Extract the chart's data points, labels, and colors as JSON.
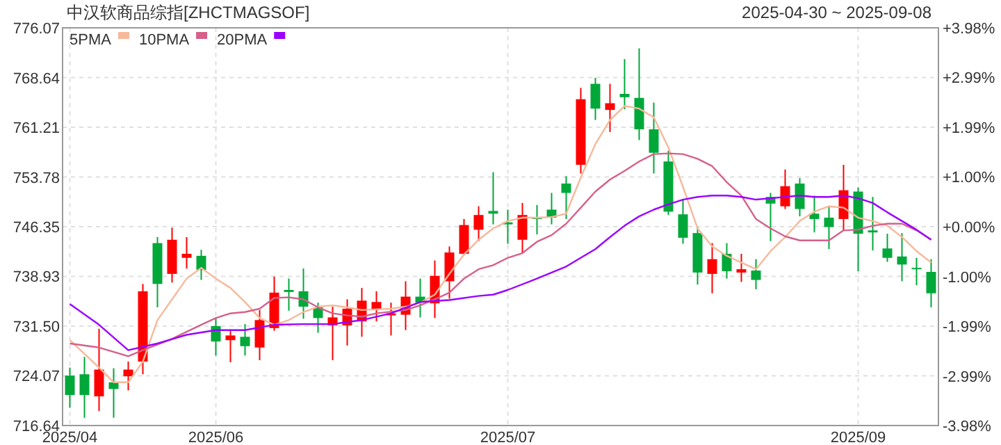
{
  "chart_data": {
    "type": "candlestick",
    "title": "中汉软商品综指[ZHCTMAGSOF]",
    "subtitle": "2025-04-30 ~ 2025-09-08",
    "categories": [
      "2025/04",
      null,
      null,
      null,
      null,
      null,
      null,
      null,
      null,
      null,
      "2025/06",
      null,
      null,
      null,
      null,
      null,
      null,
      null,
      null,
      null,
      null,
      null,
      null,
      null,
      null,
      null,
      null,
      null,
      null,
      null,
      "2025/07",
      null,
      null,
      null,
      null,
      null,
      null,
      null,
      null,
      null,
      null,
      null,
      null,
      null,
      null,
      null,
      null,
      null,
      null,
      null,
      null,
      null,
      null,
      null,
      "2025/09",
      null,
      null,
      null,
      null,
      null
    ],
    "ylim": [
      716.64,
      776.07
    ],
    "yticks": [
      716.64,
      724.07,
      {
        "value": 731.5,
        "label": "731.50"
      },
      738.93,
      746.35,
      753.78,
      761.21,
      768.64,
      776.07
    ],
    "y2lim": [
      -3.98,
      3.98
    ],
    "y2ticks": [
      {
        "value": -3.98,
        "label": "-3.98%"
      },
      {
        "value": -2.99,
        "label": "-2.99%"
      },
      {
        "value": -1.99,
        "label": "-1.99%"
      },
      {
        "value": -1.0,
        "label": "-1.00%"
      },
      {
        "value": 0,
        "label": "+0.00%"
      },
      {
        "value": 1.0,
        "label": "+1.00%"
      },
      {
        "value": 1.99,
        "label": "+1.99%"
      },
      {
        "value": 2.99,
        "label": "+2.99%"
      },
      {
        "value": 3.98,
        "label": "+3.98%"
      }
    ],
    "grid": true,
    "legend": "top left",
    "series": [
      {
        "ohlc": [
          [
            724.1,
            725.3,
            719.3,
            721.2
          ],
          [
            724.3,
            726.9,
            717.8,
            721.2
          ],
          [
            721.0,
            731.1,
            718.8,
            725.0
          ],
          [
            723.1,
            725.2,
            717.8,
            722.1
          ],
          [
            724.0,
            726.2,
            721.9,
            725.0
          ],
          [
            726.2,
            737.8,
            724.3,
            736.7
          ],
          [
            743.9,
            744.8,
            734.3,
            737.8
          ],
          [
            739.3,
            746.2,
            738.0,
            744.4
          ],
          [
            741.7,
            744.8,
            740.1,
            742.3
          ],
          [
            742.0,
            742.9,
            738.4,
            739.9
          ],
          [
            731.5,
            732.7,
            727.1,
            729.2
          ],
          [
            729.4,
            731.0,
            726.1,
            730.1
          ],
          [
            729.9,
            731.8,
            727.1,
            728.5
          ],
          [
            728.3,
            733.9,
            726.4,
            732.4
          ],
          [
            731.2,
            738.9,
            730.8,
            736.5
          ],
          [
            736.9,
            738.6,
            733.8,
            736.6
          ],
          [
            736.7,
            740.1,
            732.6,
            734.4
          ],
          [
            734.3,
            735.0,
            730.5,
            732.7
          ],
          [
            731.6,
            734.4,
            726.4,
            732.8
          ],
          [
            731.6,
            735.5,
            728.6,
            734.1
          ],
          [
            732.2,
            737.2,
            729.9,
            735.3
          ],
          [
            734.0,
            736.7,
            732.2,
            735.1
          ],
          [
            733.1,
            735.0,
            730.1,
            733.4
          ],
          [
            733.2,
            738.2,
            730.9,
            735.9
          ],
          [
            735.9,
            738.6,
            732.8,
            735.0
          ],
          [
            734.9,
            741.3,
            732.7,
            739.0
          ],
          [
            738.2,
            743.4,
            735.6,
            742.5
          ],
          [
            742.3,
            747.5,
            742.1,
            746.6
          ],
          [
            745.9,
            749.4,
            744.2,
            748.1
          ],
          [
            748.7,
            754.5,
            746.7,
            748.3
          ],
          [
            747.0,
            748.9,
            743.8,
            746.7
          ],
          [
            744.4,
            749.9,
            742.4,
            748.1
          ],
          [
            747.8,
            749.6,
            745.2,
            747.5
          ],
          [
            748.9,
            751.4,
            746.7,
            747.7
          ],
          [
            752.8,
            753.9,
            747.5,
            751.4
          ],
          [
            755.6,
            767.1,
            754.3,
            765.4
          ],
          [
            767.7,
            768.6,
            762.3,
            764.0
          ],
          [
            763.8,
            767.7,
            760.5,
            764.8
          ],
          [
            766.2,
            771.4,
            763.9,
            765.7
          ],
          [
            765.6,
            773.0,
            759.3,
            760.9
          ],
          [
            760.9,
            764.9,
            754.3,
            757.4
          ],
          [
            756.1,
            757.7,
            748.1,
            748.6
          ],
          [
            748.2,
            750.5,
            743.8,
            744.7
          ],
          [
            745.4,
            746.3,
            737.7,
            739.5
          ],
          [
            739.3,
            743.9,
            736.4,
            741.5
          ],
          [
            742.3,
            743.9,
            738.6,
            739.7
          ],
          [
            739.5,
            742.3,
            738.1,
            740.0
          ],
          [
            739.8,
            741.5,
            737.0,
            738.4
          ],
          [
            750.8,
            751.4,
            744.2,
            749.8
          ],
          [
            749.4,
            754.9,
            749.0,
            752.4
          ],
          [
            752.8,
            753.6,
            747.9,
            749.0
          ],
          [
            748.3,
            751.0,
            745.5,
            747.5
          ],
          [
            747.7,
            749.5,
            743.0,
            746.3
          ],
          [
            747.5,
            755.6,
            745.8,
            751.8
          ],
          [
            751.6,
            752.2,
            739.7,
            745.3
          ],
          [
            745.8,
            750.8,
            742.8,
            745.5
          ],
          [
            743.1,
            745.3,
            741.1,
            741.7
          ],
          [
            741.9,
            745.4,
            738.2,
            740.7
          ],
          [
            740.2,
            741.7,
            737.6,
            740.0
          ],
          [
            739.6,
            741.5,
            734.3,
            736.4
          ]
        ],
        "colors": [
          "#00a83a",
          "#00a83a",
          "#ff0000",
          "#00a83a",
          "#ff0000",
          "#ff0000",
          "#00a83a",
          "#ff0000",
          "#ff0000",
          "#00a83a",
          "#00a83a",
          "#ff0000",
          "#00a83a",
          "#ff0000",
          "#ff0000",
          "#00a83a",
          "#00a83a",
          "#00a83a",
          "#ff0000",
          "#ff0000",
          "#ff0000",
          "#ff0000",
          "#ff0000",
          "#ff0000",
          "#00a83a",
          "#ff0000",
          "#ff0000",
          "#ff0000",
          "#ff0000",
          "#00a83a",
          "#00a83a",
          "#ff0000",
          "#00a83a",
          "#00a83a",
          "#00a83a",
          "#ff0000",
          "#00a83a",
          "#ff0000",
          "#00a83a",
          "#00a83a",
          "#00a83a",
          "#00a83a",
          "#00a83a",
          "#00a83a",
          "#ff0000",
          "#00a83a",
          "#ff0000",
          "#00a83a",
          "#00a83a",
          "#ff0000",
          "#00a83a",
          "#00a83a",
          "#00a83a",
          "#ff0000",
          "#00a83a",
          "#00a83a",
          "#00a83a",
          "#00a83a",
          "#00a83a",
          "#00a83a"
        ]
      },
      {
        "type": "line",
        "name": "5PMA",
        "color": "#f7b89a",
        "values": [
          729.4,
          null,
          725.3,
          723.1,
          723.1,
          726.2,
          732.4,
          null,
          738.6,
          740.2,
          738.6,
          737.2,
          735.1,
          732.7,
          731.7,
          732.4,
          733.6,
          734.4,
          734.6,
          734.3,
          733.9,
          734.0,
          734.1,
          734.4,
          735.0,
          736.2,
          739.3,
          742.2,
          744.4,
          746.1,
          747.2,
          747.7,
          747.7,
          747.8,
          748.3,
          753.7,
          758.7,
          762.3,
          764.4,
          764.0,
          762.7,
          758.2,
          752.3,
          746.1,
          743.4,
          742.0,
          741.0,
          740.0,
          742.7,
          744.8,
          747.2,
          748.6,
          749.4,
          749.2,
          747.7,
          747.2,
          746.5,
          744.8,
          742.7,
          741.0
        ]
      },
      {
        "type": "line",
        "name": "10PMA",
        "color": "#d6608a",
        "values": [
          728.9,
          null,
          728.3,
          null,
          727.0,
          727.9,
          null,
          729.6,
          null,
          731.7,
          732.7,
          733.4,
          733.6,
          734.1,
          735.7,
          735.8,
          735.5,
          734.3,
          733.4,
          733.1,
          732.9,
          733.4,
          null,
          733.9,
          734.6,
          735.5,
          736.5,
          738.6,
          740.0,
          740.6,
          741.7,
          742.4,
          744.1,
          745.1,
          746.8,
          749.2,
          751.6,
          753.4,
          754.7,
          756.1,
          757.2,
          757.3,
          757.2,
          756.5,
          755.4,
          753.0,
          751.0,
          747.5,
          746.1,
          744.9,
          744.3,
          744.3,
          744.3,
          745.8,
          745.9,
          746.5,
          746.8,
          746.8,
          745.8,
          744.4
        ]
      },
      {
        "type": "line",
        "name": "20PMA",
        "color": "#9b00ff",
        "values": [
          734.8,
          null,
          731.7,
          null,
          727.9,
          null,
          728.9,
          null,
          730.2,
          null,
          730.9,
          null,
          730.9,
          null,
          731.7,
          null,
          731.8,
          null,
          731.8,
          null,
          732.4,
          null,
          733.4,
          null,
          735.1,
          null,
          735.4,
          null,
          736.0,
          736.2,
          736.9,
          null,
          738.6,
          null,
          740.4,
          741.7,
          743.0,
          744.8,
          746.5,
          747.9,
          748.9,
          749.7,
          750.4,
          750.8,
          751.0,
          751.0,
          750.8,
          750.4,
          750.6,
          750.8,
          751.0,
          750.8,
          750.8,
          751.0,
          750.6,
          749.9,
          748.5,
          747.2,
          745.9,
          744.4
        ]
      }
    ]
  }
}
